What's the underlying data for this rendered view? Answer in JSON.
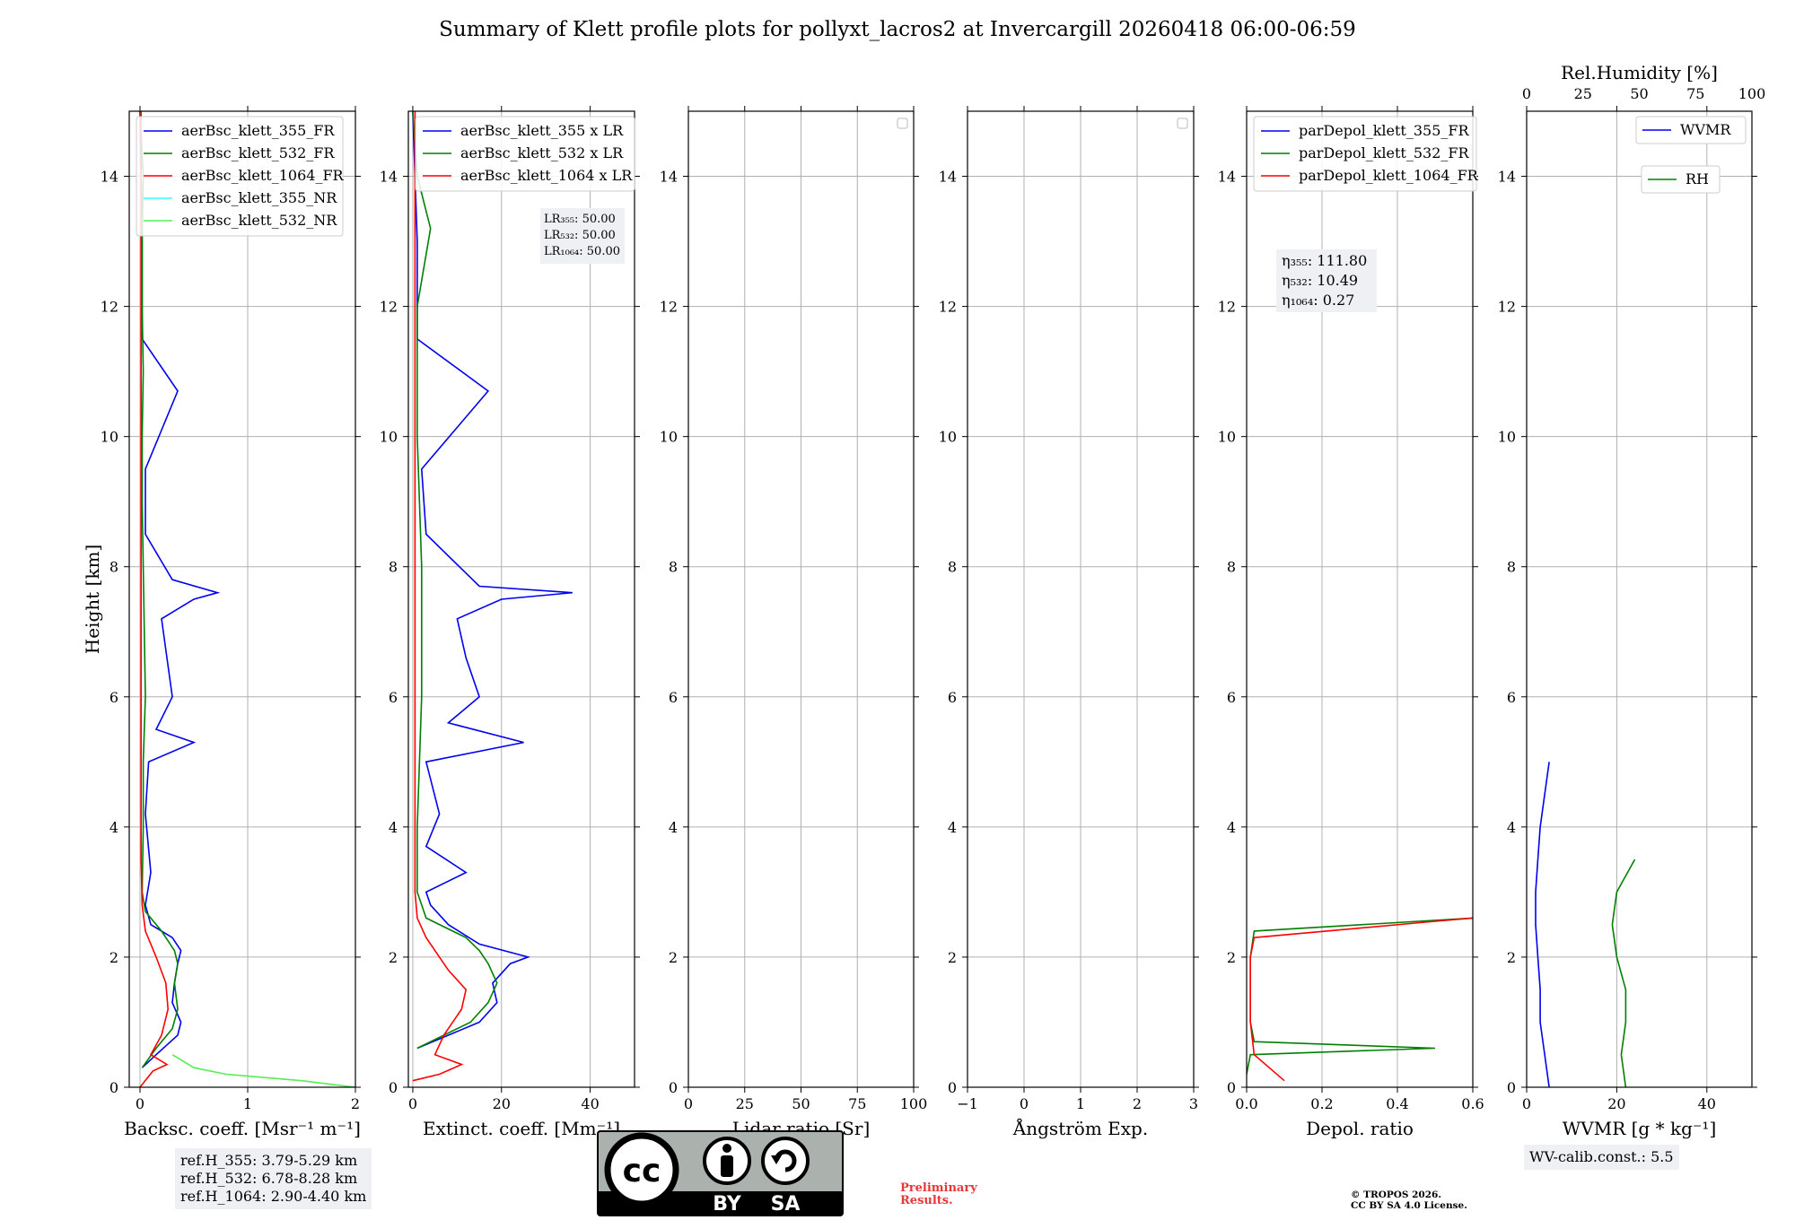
{
  "title": "Summary of Klett profile plots for pollyxt_lacros2 at Invercargill 20260418 06:00-06:59",
  "colors": {
    "ch355": "#0000ee",
    "ch532": "#008000",
    "ch1064": "#ff0000",
    "ch355_nr": "#33ffff",
    "ch532_nr": "#55ee55",
    "grid": "#b0b0b0"
  },
  "ylabel": "Height [km]",
  "panels": [
    {
      "id": "backscatter",
      "xlabel": "Backsc. coeff. [Msr⁻¹ m⁻¹]",
      "xlim": [
        -0.1,
        2
      ],
      "xticks": [
        0,
        1,
        2
      ],
      "tick_labels": [
        "0",
        "1",
        "2"
      ],
      "legend": [
        "aerBsc_klett_355_FR",
        "aerBsc_klett_532_FR",
        "aerBsc_klett_1064_FR",
        "aerBsc_klett_355_NR",
        "aerBsc_klett_532_NR"
      ]
    },
    {
      "id": "extinction",
      "xlabel": "Extinct. coeff. [Mm⁻¹]",
      "xlim": [
        -1,
        50
      ],
      "xticks": [
        0,
        20,
        40
      ],
      "tick_labels": [
        "0",
        "20",
        "40"
      ],
      "legend": [
        "aerBsc_klett_355 x LR",
        "aerBsc_klett_532 x LR",
        "aerBsc_klett_1064 x LR"
      ],
      "lr_text": [
        "LR₃₅₅: 50.00",
        "LR₅₃₂: 50.00",
        "LR₁₀₆₄: 50.00"
      ]
    },
    {
      "id": "lidarratio",
      "xlabel": "Lidar ratio [Sr]",
      "xlim": [
        0,
        100
      ],
      "xticks": [
        0,
        25,
        50,
        75,
        100
      ],
      "tick_labels": [
        "0",
        "25",
        "50",
        "75",
        "100"
      ]
    },
    {
      "id": "angstrom",
      "xlabel": "Ångström Exp.",
      "xlim": [
        -1,
        3
      ],
      "xticks": [
        -1,
        0,
        1,
        2,
        3
      ],
      "tick_labels": [
        "−1",
        "0",
        "1",
        "2",
        "3"
      ]
    },
    {
      "id": "depol",
      "xlabel": "Depol. ratio",
      "xlim": [
        0,
        0.6
      ],
      "xticks": [
        0,
        0.2,
        0.4,
        0.6
      ],
      "tick_labels": [
        "0.0",
        "0.2",
        "0.4",
        "0.6"
      ],
      "legend": [
        "parDepol_klett_355_FR",
        "parDepol_klett_532_FR",
        "parDepol_klett_1064_FR"
      ],
      "eta_text": [
        "η₃₅₅: 111.80",
        "η₅₃₂: 10.49",
        "η₁₀₆₄: 0.27"
      ]
    },
    {
      "id": "wvmr",
      "xlabel": "WVMR [g * kg⁻¹]",
      "xlim": [
        0,
        50
      ],
      "xticks": [
        0,
        20,
        40
      ],
      "tick_labels": [
        "0",
        "20",
        "40"
      ],
      "top_label": "Rel.Humidity [%]",
      "top_xlim": [
        0,
        100
      ],
      "top_ticks": [
        0,
        25,
        50,
        75,
        100
      ],
      "top_tick_labels": [
        "0",
        "25",
        "50",
        "75",
        "100"
      ],
      "legend_wvmr": "WVMR",
      "legend_rh": "RH"
    }
  ],
  "chart_data": {
    "type": "line",
    "title": "Summary of Klett profile plots for pollyxt_lacros2 at Invercargill 20260418 06:00-06:59",
    "ylabel": "Height [km]",
    "ylim": [
      0,
      15
    ],
    "yticks": [
      0,
      2,
      4,
      6,
      8,
      10,
      12,
      14
    ],
    "ytick_labels": [
      "0",
      "2",
      "4",
      "6",
      "8",
      "10",
      "12",
      "14"
    ],
    "series": [
      {
        "panel": "backscatter",
        "name": "aerBsc_klett_355_FR",
        "h": [
          0.3,
          0.5,
          0.8,
          1.0,
          1.3,
          1.6,
          1.9,
          2.1,
          2.3,
          2.5,
          2.8,
          3.3,
          4.2,
          5.0,
          5.3,
          5.5,
          6.0,
          6.6,
          7.2,
          7.5,
          7.6,
          7.8,
          8.5,
          9.5,
          10.7,
          11.5,
          13,
          15
        ],
        "v": [
          0.02,
          0.15,
          0.35,
          0.38,
          0.3,
          0.32,
          0.35,
          0.38,
          0.3,
          0.1,
          0.05,
          0.1,
          0.05,
          0.08,
          0.5,
          0.15,
          0.3,
          0.25,
          0.2,
          0.5,
          0.72,
          0.3,
          0.05,
          0.05,
          0.35,
          0.02,
          0.02,
          0.0
        ]
      },
      {
        "panel": "backscatter",
        "name": "aerBsc_klett_532_FR",
        "h": [
          0.3,
          0.6,
          0.9,
          1.2,
          1.6,
          1.9,
          2.1,
          2.4,
          2.7,
          3.0,
          4.0,
          5.0,
          6.0,
          7.0,
          8.0,
          9.0,
          10.0,
          11.0,
          12.0,
          13.0,
          14.0,
          15.0
        ],
        "v": [
          0.02,
          0.15,
          0.3,
          0.35,
          0.32,
          0.35,
          0.32,
          0.2,
          0.05,
          0.02,
          0.03,
          0.03,
          0.05,
          0.04,
          0.03,
          0.02,
          0.02,
          0.03,
          0.02,
          0.02,
          0.03,
          0.0
        ]
      },
      {
        "panel": "backscatter",
        "name": "aerBsc_klett_1064_FR",
        "h": [
          0.0,
          0.25,
          0.35,
          0.5,
          0.8,
          1.2,
          1.6,
          2.0,
          2.4,
          2.8,
          3.5,
          5.0,
          8.0,
          11.0,
          13.0,
          15.0
        ],
        "v": [
          0.0,
          0.12,
          0.25,
          0.1,
          0.2,
          0.26,
          0.24,
          0.15,
          0.05,
          0.02,
          0.01,
          0.01,
          0.01,
          0.01,
          0.01,
          0.01
        ]
      },
      {
        "panel": "backscatter",
        "name": "aerBsc_klett_532_NR",
        "h": [
          0.0,
          0.1,
          0.2,
          0.3,
          0.5
        ],
        "v": [
          2.0,
          1.5,
          0.8,
          0.5,
          0.3
        ]
      },
      {
        "panel": "extinction",
        "name": "aerBsc_klett_355 x LR",
        "h": [
          0.6,
          0.8,
          1.0,
          1.3,
          1.6,
          1.9,
          2.0,
          2.2,
          2.5,
          2.8,
          3.0,
          3.3,
          3.7,
          4.2,
          5.0,
          5.3,
          5.6,
          6.0,
          6.6,
          7.2,
          7.5,
          7.6,
          7.7,
          8.5,
          9.5,
          10.7,
          11.5,
          13.0,
          15.0
        ],
        "v": [
          1,
          8,
          15,
          19,
          18,
          22,
          26,
          15,
          8,
          4,
          3,
          12,
          3,
          6,
          3,
          25,
          8,
          15,
          12,
          10,
          20,
          36,
          15,
          3,
          2,
          17,
          1,
          1,
          0
        ]
      },
      {
        "panel": "extinction",
        "name": "aerBsc_klett_532 x LR",
        "h": [
          0.6,
          0.8,
          1.0,
          1.3,
          1.6,
          1.9,
          2.1,
          2.3,
          2.6,
          3.0,
          4.0,
          6.0,
          8.0,
          10.0,
          12.0,
          13.2,
          14.0,
          15.0
        ],
        "v": [
          1,
          7,
          13,
          17,
          19,
          17,
          15,
          12,
          3,
          1,
          1,
          2,
          2,
          1,
          1,
          4,
          1,
          0
        ]
      },
      {
        "panel": "extinction",
        "name": "aerBsc_klett_1064 x LR",
        "h": [
          0.1,
          0.2,
          0.35,
          0.5,
          0.8,
          1.2,
          1.5,
          1.8,
          2.0,
          2.3,
          2.6,
          3.0,
          4.0,
          6.0,
          8.0,
          11.0,
          15.0
        ],
        "v": [
          0,
          6,
          11,
          5,
          7,
          11,
          12,
          8,
          6,
          3,
          1,
          0.5,
          0.5,
          0.5,
          0.5,
          0.5,
          0.5
        ]
      },
      {
        "panel": "depol",
        "name": "parDepol_klett_532_FR",
        "h": [
          0.2,
          0.5,
          0.6,
          0.7,
          1.0,
          1.5,
          2.0,
          2.4,
          2.6
        ],
        "v": [
          0.0,
          0.01,
          0.5,
          0.02,
          0.01,
          0.01,
          0.01,
          0.02,
          0.6
        ]
      },
      {
        "panel": "depol",
        "name": "parDepol_klett_1064_FR",
        "h": [
          0.1,
          0.5,
          1.0,
          1.5,
          2.0,
          2.3,
          2.55,
          2.6
        ],
        "v": [
          0.1,
          0.02,
          0.01,
          0.01,
          0.01,
          0.02,
          0.5,
          0.6
        ]
      },
      {
        "panel": "wvmr",
        "name": "WVMR",
        "h": [
          0.0,
          0.5,
          1.0,
          1.5,
          2.0,
          2.5,
          3.0,
          3.5,
          4.0,
          4.5,
          5.0
        ],
        "v": [
          5,
          4,
          3,
          3,
          2.5,
          2,
          2,
          2.5,
          3,
          4,
          5
        ]
      },
      {
        "panel": "wvmr",
        "name": "RH",
        "h": [
          0.0,
          0.5,
          1.0,
          1.5,
          2.0,
          2.5,
          3.0,
          3.5
        ],
        "v": [
          44,
          42,
          44,
          44,
          40,
          38,
          40,
          48
        ]
      }
    ]
  },
  "refbox": [
    "ref.H_355: 3.79-5.29 km",
    "ref.H_532: 6.78-8.28 km",
    "ref.H_1064: 2.90-4.40 km"
  ],
  "wv_calib": "WV-calib.const.: 5.5",
  "preliminary": [
    "Preliminary",
    "Results."
  ],
  "copyright": [
    "© TROPOS 2026.",
    "CC BY SA 4.0 License."
  ],
  "cc_badge": {
    "logo": "cc",
    "by": "BY",
    "sa": "SA"
  }
}
